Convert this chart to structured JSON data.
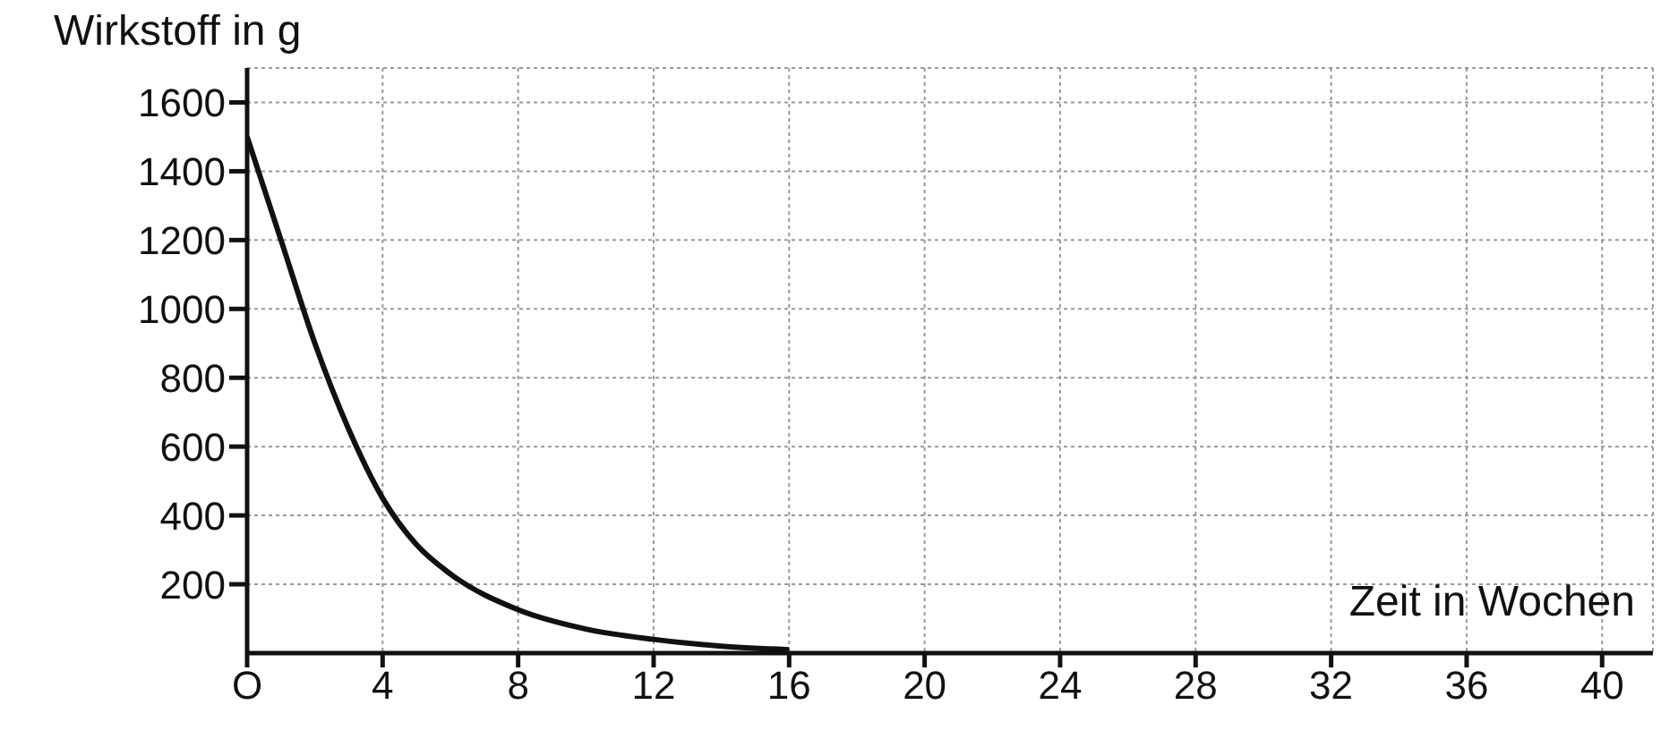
{
  "chart_data": {
    "type": "line",
    "xlabel": "Zeit in Wochen",
    "ylabel": "Wirkstoff in g",
    "x": [
      0,
      1,
      2,
      3,
      4,
      5,
      6,
      8,
      10,
      12,
      14,
      16
    ],
    "series": [
      {
        "color": "#111111",
        "values": [
          1500,
          1200,
          900,
          650,
          450,
          315,
          230,
          126,
          70,
          40,
          20,
          10
        ]
      }
    ],
    "xlim": [
      0,
      41.5
    ],
    "ylim": [
      0,
      1700
    ],
    "xticks": [
      {
        "value": 0,
        "label": "O"
      },
      4,
      8,
      12,
      16,
      20,
      24,
      28,
      32,
      36,
      40
    ],
    "yticks": [
      200,
      400,
      600,
      800,
      1000,
      1200,
      1400,
      1600
    ],
    "grid": true,
    "marker": "none",
    "line_style": "solid"
  }
}
